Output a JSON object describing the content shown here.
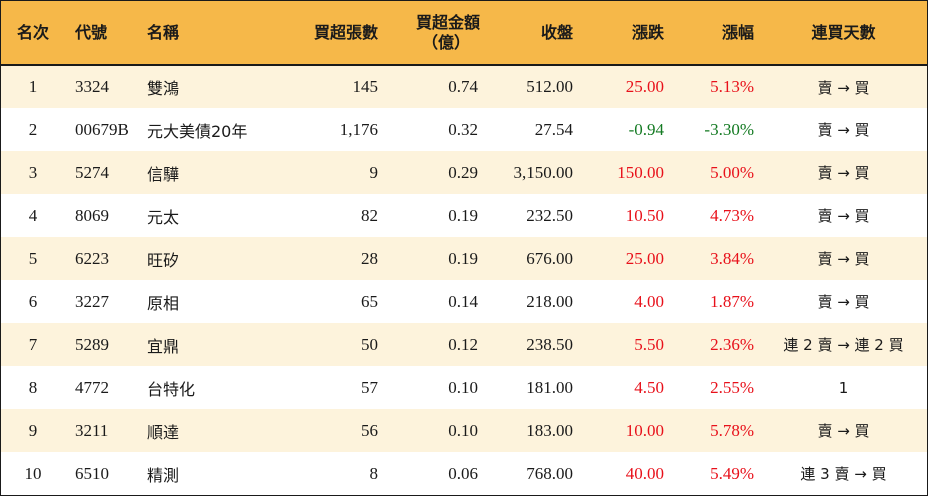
{
  "headers": {
    "rank": "名次",
    "code": "代號",
    "name": "名稱",
    "net_lots": "買超張數",
    "net_amount_line1": "買超金額",
    "net_amount_line2": "（億）",
    "close": "收盤",
    "change": "漲跌",
    "change_pct": "漲幅",
    "consecutive_days": "連買天數"
  },
  "colors": {
    "header_bg": "#f6b849",
    "odd_row_bg": "#fdf3dc",
    "up": "#e8101a",
    "down": "#137a22"
  },
  "rows": [
    {
      "rank": "1",
      "code": "3324",
      "name": "雙鴻",
      "net_lots": "145",
      "net_amount": "0.74",
      "close": "512.00",
      "change": "25.00",
      "change_pct": "5.13%",
      "trend": "up",
      "days": "賣 → 買"
    },
    {
      "rank": "2",
      "code": "00679B",
      "name": "元大美債20年",
      "net_lots": "1,176",
      "net_amount": "0.32",
      "close": "27.54",
      "change": "-0.94",
      "change_pct": "-3.30%",
      "trend": "down",
      "days": "賣 → 買"
    },
    {
      "rank": "3",
      "code": "5274",
      "name": "信驊",
      "net_lots": "9",
      "net_amount": "0.29",
      "close": "3,150.00",
      "change": "150.00",
      "change_pct": "5.00%",
      "trend": "up",
      "days": "賣 → 買"
    },
    {
      "rank": "4",
      "code": "8069",
      "name": "元太",
      "net_lots": "82",
      "net_amount": "0.19",
      "close": "232.50",
      "change": "10.50",
      "change_pct": "4.73%",
      "trend": "up",
      "days": "賣 → 買"
    },
    {
      "rank": "5",
      "code": "6223",
      "name": "旺矽",
      "net_lots": "28",
      "net_amount": "0.19",
      "close": "676.00",
      "change": "25.00",
      "change_pct": "3.84%",
      "trend": "up",
      "days": "賣 → 買"
    },
    {
      "rank": "6",
      "code": "3227",
      "name": "原相",
      "net_lots": "65",
      "net_amount": "0.14",
      "close": "218.00",
      "change": "4.00",
      "change_pct": "1.87%",
      "trend": "up",
      "days": "賣 → 買"
    },
    {
      "rank": "7",
      "code": "5289",
      "name": "宜鼎",
      "net_lots": "50",
      "net_amount": "0.12",
      "close": "238.50",
      "change": "5.50",
      "change_pct": "2.36%",
      "trend": "up",
      "days": "連 2 賣 → 連 2 買"
    },
    {
      "rank": "8",
      "code": "4772",
      "name": "台特化",
      "net_lots": "57",
      "net_amount": "0.10",
      "close": "181.00",
      "change": "4.50",
      "change_pct": "2.55%",
      "trend": "up",
      "days": "1"
    },
    {
      "rank": "9",
      "code": "3211",
      "name": "順達",
      "net_lots": "56",
      "net_amount": "0.10",
      "close": "183.00",
      "change": "10.00",
      "change_pct": "5.78%",
      "trend": "up",
      "days": "賣 → 買"
    },
    {
      "rank": "10",
      "code": "6510",
      "name": "精測",
      "net_lots": "8",
      "net_amount": "0.06",
      "close": "768.00",
      "change": "40.00",
      "change_pct": "5.49%",
      "trend": "up",
      "days": "連 3 賣 → 買"
    }
  ]
}
